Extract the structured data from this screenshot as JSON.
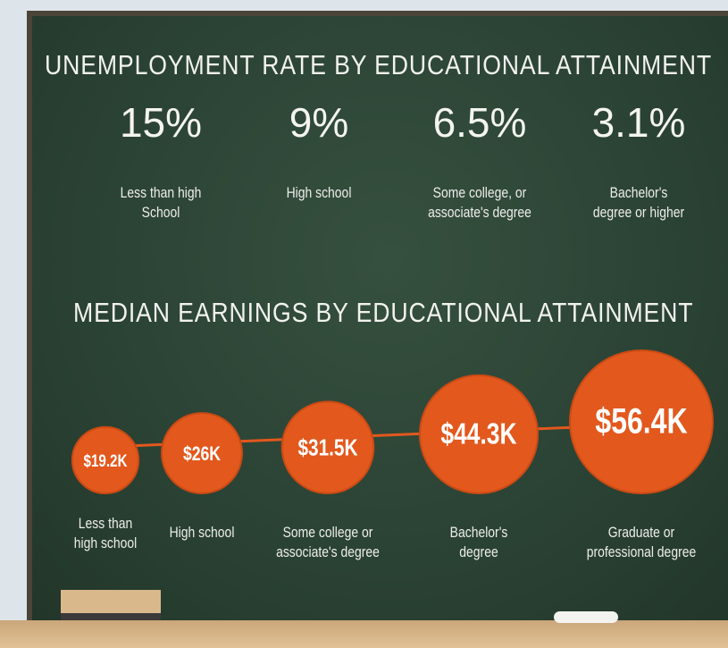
{
  "chart_data": [
    {
      "type": "stat",
      "title": "UNEMPLOYMENT RATE BY EDUCATIONAL ATTAINMENT",
      "categories": [
        "Less than high\nSchool",
        "High school",
        "Some college, or\nassociate's degree",
        "Bachelor's\ndegree or higher"
      ],
      "values": [
        15,
        9,
        6.5,
        3.1
      ],
      "value_labels": [
        "15%",
        "9%",
        "6.5%",
        "3.1%"
      ]
    },
    {
      "type": "bubble",
      "title": "MEDIAN EARNINGS BY EDUCATIONAL ATTAINMENT",
      "categories": [
        "Less than\nhigh school",
        "High school",
        "Some college or\nassociate's degree",
        "Bachelor's\ndegree",
        "Graduate or\nprofessional degree"
      ],
      "values": [
        19200,
        26000,
        31500,
        44300,
        56400
      ],
      "value_labels": [
        "$19.2K",
        "$26K",
        "$31.5K",
        "$44.3K",
        "$56.4K"
      ],
      "color": "#e2581d"
    }
  ]
}
